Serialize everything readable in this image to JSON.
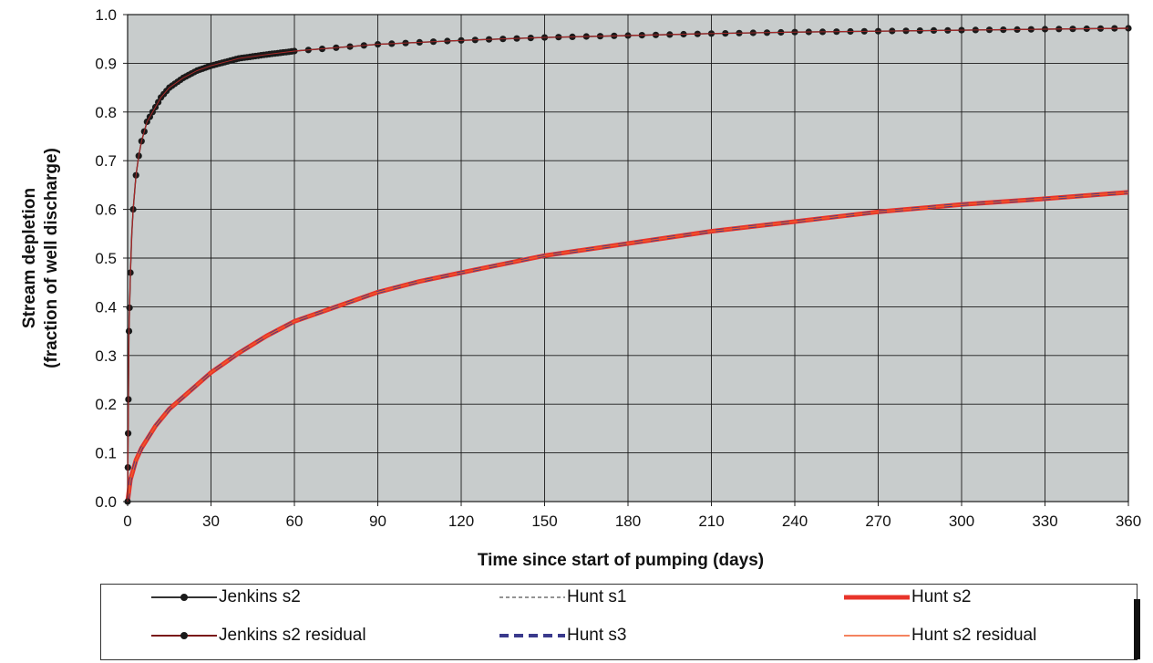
{
  "chart_data": {
    "type": "line",
    "title": "",
    "xlabel": "Time since start of pumping (days)",
    "ylabel_lines": [
      "Stream depletion",
      "(fraction of well discharge)"
    ],
    "xlim": [
      0,
      360
    ],
    "ylim": [
      0,
      1.0
    ],
    "x_ticks": [
      0,
      30,
      60,
      90,
      120,
      150,
      180,
      210,
      240,
      270,
      300,
      330,
      360
    ],
    "x_tick_labels": [
      "0",
      "30",
      "60",
      "90",
      "120",
      "150",
      "180",
      "210",
      "240",
      "270",
      "300",
      "330",
      "360"
    ],
    "y_ticks": [
      0,
      0.1,
      0.2,
      0.3,
      0.4,
      0.5,
      0.6,
      0.7,
      0.8,
      0.9,
      1.0
    ],
    "y_tick_labels": [
      "0.0",
      "0.1",
      "0.2",
      "0.3",
      "0.4",
      "0.5",
      "0.6",
      "0.7",
      "0.8",
      "0.9",
      "1.0"
    ],
    "grid": true,
    "legend_position": "bottom",
    "plot_background": "#c8cccc",
    "series": [
      {
        "name": "Jenkins s2",
        "color": "#333333",
        "style": "solid-markers",
        "x": [
          0,
          0.5,
          1,
          1.5,
          2,
          3,
          4,
          5,
          6,
          7,
          8,
          10,
          12,
          15,
          20,
          25,
          30,
          40,
          50,
          60,
          90,
          120,
          150,
          180,
          210,
          240,
          270,
          300,
          330,
          360
        ],
        "y": [
          0.0,
          0.35,
          0.47,
          0.55,
          0.6,
          0.67,
          0.71,
          0.74,
          0.76,
          0.78,
          0.79,
          0.81,
          0.83,
          0.85,
          0.87,
          0.885,
          0.895,
          0.91,
          0.918,
          0.925,
          0.939,
          0.947,
          0.953,
          0.957,
          0.961,
          0.964,
          0.966,
          0.968,
          0.97,
          0.972
        ]
      },
      {
        "name": "Jenkins s2 residual",
        "color": "#7a1a1a",
        "style": "solid-markers",
        "x": [
          0,
          0.5,
          1,
          1.5,
          2,
          3,
          4,
          5,
          6,
          7,
          8,
          10,
          12,
          15,
          20,
          25,
          30,
          40,
          50,
          60,
          90,
          120,
          150,
          180,
          210,
          240,
          270,
          300,
          330,
          360
        ],
        "y": [
          0.0,
          0.35,
          0.47,
          0.55,
          0.6,
          0.67,
          0.71,
          0.74,
          0.76,
          0.78,
          0.79,
          0.81,
          0.83,
          0.85,
          0.87,
          0.885,
          0.895,
          0.91,
          0.918,
          0.925,
          0.939,
          0.947,
          0.953,
          0.957,
          0.961,
          0.964,
          0.966,
          0.968,
          0.97,
          0.972
        ]
      },
      {
        "name": "Hunt s1",
        "color": "#555555",
        "style": "dashed-thin",
        "x": [
          0,
          1,
          3,
          5,
          10,
          15,
          20,
          30,
          40,
          50,
          60,
          75,
          90,
          105,
          120,
          150,
          180,
          210,
          240,
          270,
          300,
          330,
          360
        ],
        "y": [
          0.0,
          0.045,
          0.085,
          0.11,
          0.155,
          0.19,
          0.215,
          0.265,
          0.305,
          0.34,
          0.37,
          0.4,
          0.43,
          0.452,
          0.47,
          0.505,
          0.53,
          0.555,
          0.575,
          0.595,
          0.61,
          0.622,
          0.635
        ]
      },
      {
        "name": "Hunt s2",
        "color": "#e8342a",
        "style": "solid-thick",
        "x": [
          0,
          1,
          3,
          5,
          10,
          15,
          20,
          30,
          40,
          50,
          60,
          75,
          90,
          105,
          120,
          150,
          180,
          210,
          240,
          270,
          300,
          330,
          360
        ],
        "y": [
          0.0,
          0.045,
          0.085,
          0.11,
          0.155,
          0.19,
          0.215,
          0.265,
          0.305,
          0.34,
          0.37,
          0.4,
          0.43,
          0.452,
          0.47,
          0.505,
          0.53,
          0.555,
          0.575,
          0.595,
          0.61,
          0.622,
          0.635
        ]
      },
      {
        "name": "Hunt s3",
        "color": "#3a3a8c",
        "style": "dashed-thick",
        "x": [
          0,
          1,
          3,
          5,
          10,
          15,
          20,
          30,
          40,
          50,
          60,
          75,
          90,
          105,
          120,
          150,
          180,
          210,
          240,
          270,
          300,
          330,
          360
        ],
        "y": [
          0.0,
          0.045,
          0.085,
          0.11,
          0.155,
          0.19,
          0.215,
          0.265,
          0.305,
          0.34,
          0.37,
          0.4,
          0.43,
          0.452,
          0.47,
          0.505,
          0.53,
          0.555,
          0.575,
          0.595,
          0.61,
          0.622,
          0.635
        ]
      },
      {
        "name": "Hunt s2 residual",
        "color": "#f05a2a",
        "style": "solid-thin",
        "x": [
          0,
          1,
          3,
          5,
          10,
          15,
          20,
          30,
          40,
          50,
          60,
          75,
          90,
          105,
          120,
          150,
          180,
          210,
          240,
          270,
          300,
          330,
          360
        ],
        "y": [
          0.0,
          0.045,
          0.085,
          0.11,
          0.155,
          0.19,
          0.215,
          0.265,
          0.305,
          0.34,
          0.37,
          0.4,
          0.43,
          0.452,
          0.47,
          0.505,
          0.53,
          0.555,
          0.575,
          0.595,
          0.61,
          0.622,
          0.635
        ]
      }
    ]
  },
  "legend": {
    "items": [
      {
        "label": "Jenkins s2",
        "style": "solid-markers",
        "color": "#333333"
      },
      {
        "label": "Hunt s1",
        "style": "dashed-thin",
        "color": "#555555"
      },
      {
        "label": "Hunt s2",
        "style": "solid-thick",
        "color": "#e8342a"
      },
      {
        "label": "Jenkins s2 residual",
        "style": "solid-markers",
        "color": "#7a1a1a"
      },
      {
        "label": "Hunt s3",
        "style": "dashed-thick",
        "color": "#3a3a8c"
      },
      {
        "label": "Hunt s2 residual",
        "style": "solid-thin",
        "color": "#f05a2a"
      }
    ]
  }
}
